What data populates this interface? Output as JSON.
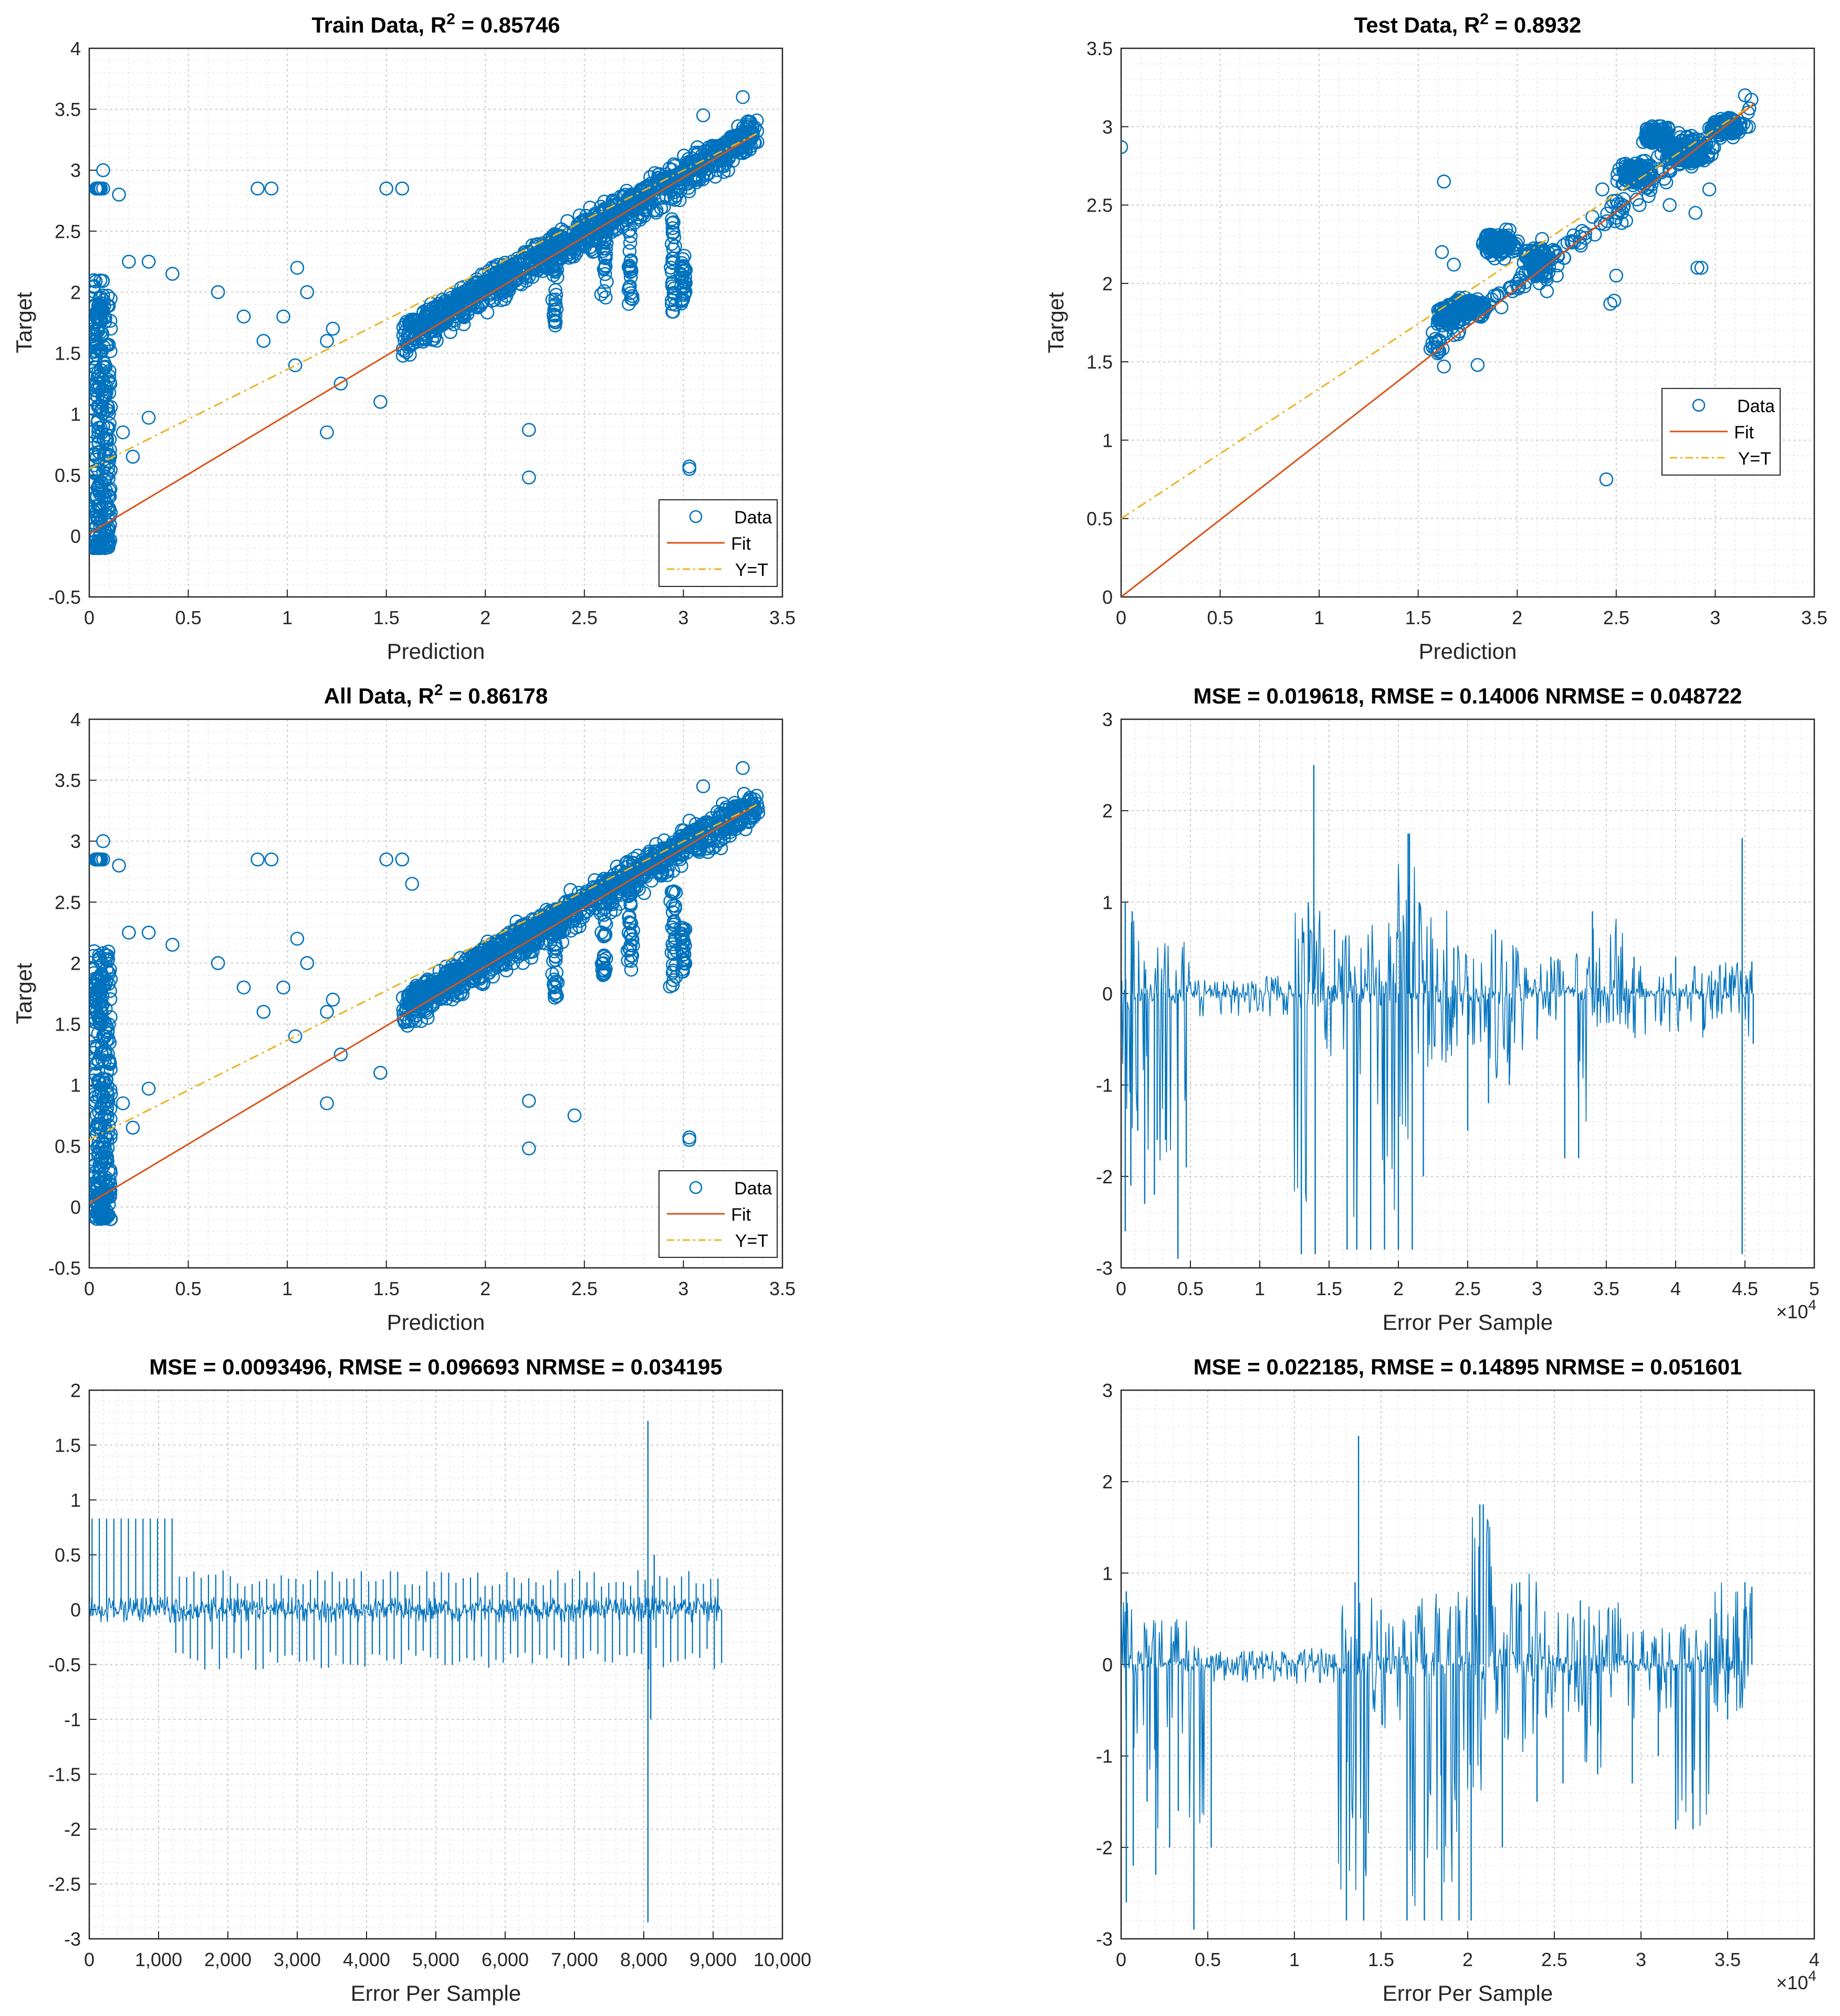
{
  "colors": {
    "data": "#0072BD",
    "fit": "#D95319",
    "yt": "#EDB120",
    "axis": "#262626",
    "grid": "#c8c8c8"
  },
  "chart_data": [
    {
      "type": "scatter",
      "panel": "train",
      "title_main": "Train Data, R",
      "title_sup": "2",
      "title_value": " = 0.85746",
      "xlabel": "Prediction",
      "ylabel": "Target",
      "xlim": [
        0,
        3.5
      ],
      "ylim": [
        -0.5,
        4
      ],
      "xticks": [
        0,
        0.5,
        1,
        1.5,
        2,
        2.5,
        3,
        3.5
      ],
      "yticks": [
        -0.5,
        0,
        0.5,
        1,
        1.5,
        2,
        2.5,
        3,
        3.5,
        4
      ],
      "xtick_labels": [
        "0",
        "0.5",
        "1",
        "1.5",
        "2",
        "2.5",
        "3",
        "3.5"
      ],
      "ytick_labels": [
        "-0.5",
        "0",
        "0.5",
        "1",
        "1.5",
        "2",
        "2.5",
        "3",
        "3.5",
        "4"
      ],
      "fit_line": [
        [
          0,
          0.02
        ],
        [
          3.37,
          3.3
        ]
      ],
      "yt_line": [
        [
          0,
          0.55
        ],
        [
          3.37,
          3.3
        ]
      ],
      "legend": {
        "position": "bottom-right",
        "entries": [
          "Data",
          "Fit",
          "Y=T"
        ]
      },
      "outliers": [
        [
          0.07,
          3.0
        ],
        [
          0.07,
          2.85
        ],
        [
          0.15,
          2.8
        ],
        [
          0.85,
          2.85
        ],
        [
          0.92,
          2.85
        ],
        [
          1.5,
          2.85
        ],
        [
          1.58,
          2.85
        ],
        [
          0.2,
          2.25
        ],
        [
          0.3,
          2.25
        ],
        [
          0.42,
          2.15
        ],
        [
          0.65,
          2.0
        ],
        [
          1.05,
          2.2
        ],
        [
          1.1,
          2.0
        ],
        [
          0.78,
          1.8
        ],
        [
          0.88,
          1.6
        ],
        [
          0.98,
          1.8
        ],
        [
          1.23,
          1.7
        ],
        [
          1.2,
          1.6
        ],
        [
          1.04,
          1.4
        ],
        [
          1.27,
          1.25
        ],
        [
          1.47,
          1.1
        ],
        [
          1.2,
          0.85
        ],
        [
          0.3,
          0.97
        ],
        [
          0.22,
          0.65
        ],
        [
          0.17,
          0.85
        ],
        [
          0.07,
          0.9
        ],
        [
          2.22,
          0.87
        ],
        [
          2.22,
          0.48
        ],
        [
          3.03,
          0.57
        ],
        [
          3.03,
          0.55
        ],
        [
          3.3,
          3.6
        ],
        [
          3.1,
          3.45
        ]
      ]
    },
    {
      "type": "scatter",
      "panel": "test",
      "title_main": "Test Data, R",
      "title_sup": "2",
      "title_value": " = 0.8932",
      "xlabel": "Prediction",
      "ylabel": "Target",
      "xlim": [
        0,
        3.5
      ],
      "ylim": [
        0,
        3.5
      ],
      "xticks": [
        0,
        0.5,
        1,
        1.5,
        2,
        2.5,
        3,
        3.5
      ],
      "yticks": [
        0,
        0.5,
        1,
        1.5,
        2,
        2.5,
        3,
        3.5
      ],
      "xtick_labels": [
        "0",
        "0.5",
        "1",
        "1.5",
        "2",
        "2.5",
        "3",
        "3.5"
      ],
      "ytick_labels": [
        "0",
        "0.5",
        "1",
        "1.5",
        "2",
        "2.5",
        "3",
        "3.5"
      ],
      "fit_line": [
        [
          0,
          0.0
        ],
        [
          3.2,
          3.15
        ]
      ],
      "yt_line": [
        [
          0,
          0.5
        ],
        [
          3.2,
          3.15
        ]
      ],
      "legend": {
        "position": "middle-right",
        "entries": [
          "Data",
          "Fit",
          "Y=T"
        ]
      },
      "outliers": [
        [
          0.0,
          2.87
        ],
        [
          1.63,
          2.65
        ],
        [
          1.6,
          1.58
        ],
        [
          1.63,
          1.47
        ],
        [
          1.8,
          1.48
        ],
        [
          2.45,
          0.75
        ],
        [
          2.47,
          1.87
        ],
        [
          2.49,
          1.89
        ],
        [
          2.5,
          2.05
        ],
        [
          2.93,
          2.1
        ],
        [
          2.91,
          2.1
        ],
        [
          2.77,
          2.5
        ],
        [
          2.55,
          2.4
        ],
        [
          2.9,
          2.45
        ],
        [
          2.97,
          2.6
        ],
        [
          3.17,
          3.0
        ],
        [
          3.15,
          3.2
        ],
        [
          2.43,
          2.6
        ],
        [
          2.15,
          1.95
        ],
        [
          2.2,
          2.05
        ],
        [
          1.62,
          2.2
        ],
        [
          1.68,
          2.12
        ]
      ]
    },
    {
      "type": "scatter",
      "panel": "all",
      "title_main": "All Data, R",
      "title_sup": "2",
      "title_value": " = 0.86178",
      "xlabel": "Prediction",
      "ylabel": "Target",
      "xlim": [
        0,
        3.5
      ],
      "ylim": [
        -0.5,
        4
      ],
      "xticks": [
        0,
        0.5,
        1,
        1.5,
        2,
        2.5,
        3,
        3.5
      ],
      "yticks": [
        -0.5,
        0,
        0.5,
        1,
        1.5,
        2,
        2.5,
        3,
        3.5,
        4
      ],
      "xtick_labels": [
        "0",
        "0.5",
        "1",
        "1.5",
        "2",
        "2.5",
        "3",
        "3.5"
      ],
      "ytick_labels": [
        "-0.5",
        "0",
        "0.5",
        "1",
        "1.5",
        "2",
        "2.5",
        "3",
        "3.5",
        "4"
      ],
      "fit_line": [
        [
          0,
          0.03
        ],
        [
          3.37,
          3.3
        ]
      ],
      "yt_line": [
        [
          0,
          0.55
        ],
        [
          3.37,
          3.3
        ]
      ],
      "legend": {
        "position": "bottom-right",
        "entries": [
          "Data",
          "Fit",
          "Y=T"
        ]
      },
      "outliers": [
        [
          0.07,
          3.0
        ],
        [
          0.07,
          2.85
        ],
        [
          0.15,
          2.8
        ],
        [
          0.85,
          2.85
        ],
        [
          0.92,
          2.85
        ],
        [
          1.5,
          2.85
        ],
        [
          1.58,
          2.85
        ],
        [
          0.2,
          2.25
        ],
        [
          0.3,
          2.25
        ],
        [
          0.42,
          2.15
        ],
        [
          0.65,
          2.0
        ],
        [
          1.05,
          2.2
        ],
        [
          1.1,
          2.0
        ],
        [
          0.78,
          1.8
        ],
        [
          0.88,
          1.6
        ],
        [
          0.98,
          1.8
        ],
        [
          1.23,
          1.7
        ],
        [
          1.2,
          1.6
        ],
        [
          1.04,
          1.4
        ],
        [
          1.27,
          1.25
        ],
        [
          1.47,
          1.1
        ],
        [
          1.2,
          0.85
        ],
        [
          0.3,
          0.97
        ],
        [
          0.22,
          0.65
        ],
        [
          0.17,
          0.85
        ],
        [
          0.07,
          0.9
        ],
        [
          2.22,
          0.87
        ],
        [
          2.22,
          0.48
        ],
        [
          2.45,
          0.75
        ],
        [
          3.03,
          0.57
        ],
        [
          3.03,
          0.55
        ],
        [
          3.3,
          3.6
        ],
        [
          3.1,
          3.45
        ],
        [
          1.63,
          2.65
        ],
        [
          2.43,
          2.6
        ]
      ]
    },
    {
      "type": "line",
      "panel": "error-all",
      "title": "MSE = 0.019618, RMSE = 0.14006 NRMSE = 0.048722",
      "xlabel": "Error Per Sample",
      "ylabel": "",
      "xlim": [
        0,
        50000
      ],
      "ylim": [
        -3,
        3
      ],
      "xticks": [
        0,
        5000,
        10000,
        15000,
        20000,
        25000,
        30000,
        35000,
        40000,
        45000,
        50000
      ],
      "yticks": [
        -3,
        -2,
        -1,
        0,
        1,
        2,
        3
      ],
      "xtick_labels": [
        "0",
        "0.5",
        "1",
        "1.5",
        "2",
        "2.5",
        "3",
        "3.5",
        "4",
        "4.5",
        "5"
      ],
      "ytick_labels": [
        "-3",
        "-2",
        "-1",
        "0",
        "1",
        "2",
        "3"
      ],
      "exponent_label": "×10",
      "exponent_power": "4",
      "x_end": 45600,
      "spikes": [
        [
          300,
          1.0
        ],
        [
          300,
          -2.6
        ],
        [
          700,
          -2.1
        ],
        [
          800,
          0.9
        ],
        [
          1200,
          -1.5
        ],
        [
          1700,
          -2.3
        ],
        [
          2400,
          -2.2
        ],
        [
          2600,
          -1.6
        ],
        [
          3200,
          -1.6
        ],
        [
          4100,
          -2.9
        ],
        [
          4700,
          -1.9
        ],
        [
          13000,
          -2.85
        ],
        [
          13500,
          1.0
        ],
        [
          13900,
          2.5
        ],
        [
          14000,
          -2.85
        ],
        [
          15400,
          0.7
        ],
        [
          16300,
          -2.8
        ],
        [
          17000,
          -2.8
        ],
        [
          18000,
          -2.8
        ],
        [
          19000,
          -2.8
        ],
        [
          20000,
          -2.8
        ],
        [
          21000,
          -2.8
        ],
        [
          20700,
          1.75
        ],
        [
          20800,
          1.75
        ],
        [
          21500,
          1.0
        ],
        [
          21800,
          -2.0
        ],
        [
          24000,
          0.5
        ],
        [
          25000,
          -1.5
        ],
        [
          26500,
          -1.2
        ],
        [
          27000,
          0.7
        ],
        [
          28000,
          -1.0
        ],
        [
          30000,
          -0.5
        ],
        [
          31000,
          0.4
        ],
        [
          32000,
          -1.8
        ],
        [
          33000,
          -1.8
        ],
        [
          34000,
          0.9
        ],
        [
          35500,
          -0.3
        ],
        [
          37000,
          0.4
        ],
        [
          39000,
          -0.3
        ],
        [
          40000,
          0.4
        ],
        [
          42000,
          -0.4
        ],
        [
          44000,
          0.2
        ],
        [
          44800,
          1.7
        ],
        [
          44800,
          -2.85
        ],
        [
          45500,
          0.35
        ],
        [
          45600,
          -0.55
        ]
      ],
      "segments": [
        [
          0,
          1200,
          -1.5,
          1.0
        ],
        [
          1200,
          5000,
          -1.9,
          0.6
        ],
        [
          5000,
          10000,
          -0.25,
          0.15
        ],
        [
          10000,
          12500,
          -0.25,
          0.2
        ],
        [
          12500,
          14500,
          -2.85,
          1.0
        ],
        [
          14500,
          16500,
          -0.7,
          0.7
        ],
        [
          16500,
          20000,
          -2.8,
          0.8
        ],
        [
          20000,
          21500,
          -1.7,
          1.7
        ],
        [
          21500,
          24000,
          -1.0,
          1.0
        ],
        [
          24000,
          26500,
          -0.6,
          0.6
        ],
        [
          26500,
          29000,
          -1.0,
          0.7
        ],
        [
          29000,
          32000,
          -0.4,
          0.4
        ],
        [
          32000,
          34000,
          -1.8,
          0.5
        ],
        [
          34000,
          36500,
          -0.4,
          0.9
        ],
        [
          36500,
          45600,
          -0.55,
          0.35
        ]
      ]
    },
    {
      "type": "line",
      "panel": "error-test",
      "title": "MSE = 0.0093496, RMSE = 0.096693 NRMSE = 0.034195",
      "xlabel": "Error Per Sample",
      "ylabel": "",
      "xlim": [
        0,
        10000
      ],
      "ylim": [
        -3,
        2
      ],
      "xticks": [
        0,
        1000,
        2000,
        3000,
        4000,
        5000,
        6000,
        7000,
        8000,
        9000,
        10000
      ],
      "yticks": [
        -3,
        -2.5,
        -2,
        -1.5,
        -1,
        -0.5,
        0,
        0.5,
        1,
        1.5,
        2
      ],
      "xtick_labels": [
        "0",
        "1,000",
        "2,000",
        "3,000",
        "4,000",
        "5,000",
        "6,000",
        "7,000",
        "8,000",
        "9,000",
        "10,000"
      ],
      "ytick_labels": [
        "-3",
        "-2.5",
        "-2",
        "-1.5",
        "-1",
        "-0.5",
        "0",
        "0.5",
        "1",
        "1.5",
        "2"
      ],
      "x_end": 9120,
      "spikes": [
        [
          8060,
          1.72
        ],
        [
          8060,
          -2.85
        ],
        [
          8100,
          -1.0
        ],
        [
          8150,
          0.5
        ]
      ],
      "periodic": {
        "start": 0,
        "end": 9120,
        "period": 105,
        "high_first": 0.83,
        "high_until": 1250,
        "low": -0.5,
        "high_later": 0.3
      },
      "segments": [
        [
          0,
          9120,
          -0.12,
          0.12
        ]
      ]
    },
    {
      "type": "line",
      "panel": "error-train",
      "title": "MSE = 0.022185, RMSE = 0.14895 NRMSE = 0.051601",
      "xlabel": "Error Per Sample",
      "ylabel": "",
      "xlim": [
        0,
        40000
      ],
      "ylim": [
        -3,
        3
      ],
      "xticks": [
        0,
        5000,
        10000,
        15000,
        20000,
        25000,
        30000,
        35000,
        40000
      ],
      "yticks": [
        -3,
        -2,
        -1,
        0,
        1,
        2,
        3
      ],
      "xtick_labels": [
        "0",
        "0.5",
        "1",
        "1.5",
        "2",
        "2.5",
        "3",
        "3.5",
        "4"
      ],
      "ytick_labels": [
        "-3",
        "-2",
        "-1",
        "0",
        "1",
        "2",
        "3"
      ],
      "exponent_label": "×10",
      "exponent_power": "4",
      "x_end": 36400,
      "spikes": [
        [
          300,
          0.8
        ],
        [
          300,
          -2.6
        ],
        [
          700,
          -2.2
        ],
        [
          1500,
          -1.5
        ],
        [
          2000,
          -2.3
        ],
        [
          2800,
          -2.0
        ],
        [
          3300,
          -1.6
        ],
        [
          4200,
          -2.9
        ],
        [
          5200,
          -2.0
        ],
        [
          13000,
          -2.8
        ],
        [
          13500,
          0.9
        ],
        [
          13700,
          2.5
        ],
        [
          14000,
          -2.8
        ],
        [
          15000,
          0.6
        ],
        [
          16500,
          -2.8
        ],
        [
          17500,
          -2.8
        ],
        [
          18500,
          -2.8
        ],
        [
          19500,
          -2.8
        ],
        [
          20200,
          -2.8
        ],
        [
          20700,
          1.75
        ],
        [
          20900,
          1.75
        ],
        [
          22000,
          -2.0
        ],
        [
          23000,
          0.9
        ],
        [
          24000,
          -1.5
        ],
        [
          25500,
          -1.3
        ],
        [
          26500,
          0.7
        ],
        [
          27500,
          -1.2
        ],
        [
          29500,
          -1.3
        ],
        [
          31000,
          -1.0
        ],
        [
          32000,
          -1.8
        ],
        [
          33000,
          -1.8
        ],
        [
          34000,
          0.5
        ],
        [
          35000,
          -0.6
        ],
        [
          36000,
          0.9
        ],
        [
          36400,
          0.85
        ]
      ],
      "segments": [
        [
          0,
          1200,
          -1.5,
          0.8
        ],
        [
          1200,
          5000,
          -1.9,
          0.5
        ],
        [
          5000,
          10000,
          -0.2,
          0.15
        ],
        [
          10000,
          12500,
          -0.25,
          0.2
        ],
        [
          12500,
          14500,
          -2.8,
          0.9
        ],
        [
          14500,
          16500,
          -0.7,
          0.6
        ],
        [
          16500,
          20000,
          -2.8,
          0.8
        ],
        [
          20000,
          21500,
          -1.7,
          1.75
        ],
        [
          21500,
          24000,
          -1.0,
          1.0
        ],
        [
          24000,
          26500,
          -0.6,
          0.6
        ],
        [
          26500,
          29000,
          -1.2,
          0.7
        ],
        [
          29000,
          32000,
          -0.6,
          0.4
        ],
        [
          32000,
          34000,
          -1.8,
          0.5
        ],
        [
          34000,
          36400,
          -0.6,
          0.9
        ]
      ]
    }
  ]
}
